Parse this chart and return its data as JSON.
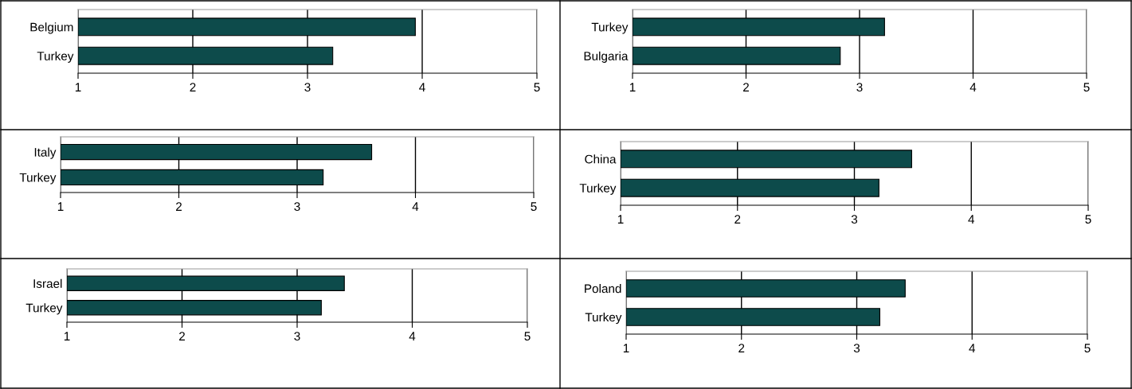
{
  "chart_data": [
    {
      "type": "bar",
      "orientation": "horizontal",
      "categories": [
        "Belgium",
        "Turkey"
      ],
      "values": [
        3.94,
        3.22
      ],
      "color": "#0d4b4b",
      "xlim": [
        1,
        5
      ],
      "xticks": [
        1,
        2,
        3,
        4,
        5
      ],
      "grid": "x"
    },
    {
      "type": "bar",
      "orientation": "horizontal",
      "categories": [
        "Turkey",
        "Bulgaria"
      ],
      "values": [
        3.22,
        2.83
      ],
      "color": "#0d4b4b",
      "xlim": [
        1,
        5
      ],
      "xticks": [
        1,
        2,
        3,
        4,
        5
      ],
      "grid": "x"
    },
    {
      "type": "bar",
      "orientation": "horizontal",
      "categories": [
        "Italy",
        "Turkey"
      ],
      "values": [
        3.63,
        3.22
      ],
      "color": "#0d4b4b",
      "xlim": [
        1,
        5
      ],
      "xticks": [
        1,
        2,
        3,
        4,
        5
      ],
      "grid": "x"
    },
    {
      "type": "bar",
      "orientation": "horizontal",
      "categories": [
        "China",
        "Turkey"
      ],
      "values": [
        3.49,
        3.21
      ],
      "color": "#0d4b4b",
      "xlim": [
        1,
        5
      ],
      "xticks": [
        1,
        2,
        3,
        4,
        5
      ],
      "grid": "x"
    },
    {
      "type": "bar",
      "orientation": "horizontal",
      "categories": [
        "Israel",
        "Turkey"
      ],
      "values": [
        3.41,
        3.21
      ],
      "color": "#0d4b4b",
      "xlim": [
        1,
        5
      ],
      "xticks": [
        1,
        2,
        3,
        4,
        5
      ],
      "grid": "x"
    },
    {
      "type": "bar",
      "orientation": "horizontal",
      "categories": [
        "Poland",
        "Turkey"
      ],
      "values": [
        3.42,
        3.2
      ],
      "color": "#0d4b4b",
      "xlim": [
        1,
        5
      ],
      "xticks": [
        1,
        2,
        3,
        4,
        5
      ],
      "grid": "x"
    }
  ]
}
